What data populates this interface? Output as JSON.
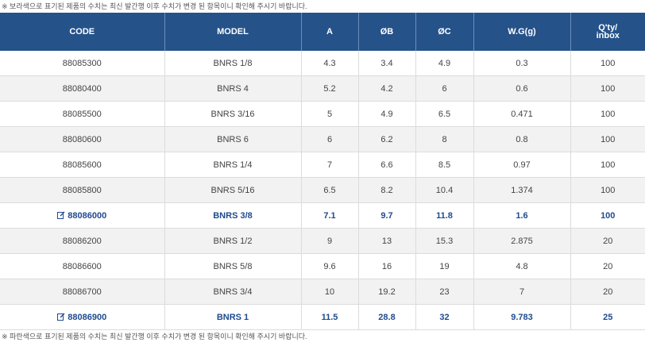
{
  "notes": {
    "top": "※ 보라색으로 표기된 제품의 수치는 최신 발간행 이후 수치가 변경 된 항목이니 확인해 주시기 바랍니다.",
    "bottom": "※ 파란색으로 표기된 제품의 수치는 최신 발간행 이후 수치가 변경 된 항목이니 확인해 주시기 바랍니다."
  },
  "table": {
    "headers": [
      "CODE",
      "MODEL",
      "A",
      "ØB",
      "ØC",
      "W.G(g)"
    ],
    "qty_header": {
      "line1": "Q'ty/",
      "line2": "inbox"
    },
    "rows": [
      {
        "code": "88085300",
        "model": "BNRS 1/8",
        "a": "4.3",
        "b": "3.4",
        "c": "4.9",
        "wg": "0.3",
        "qty": "100"
      },
      {
        "code": "88080400",
        "model": "BNRS 4",
        "a": "5.2",
        "b": "4.2",
        "c": "6",
        "wg": "0.6",
        "qty": "100"
      },
      {
        "code": "88085500",
        "model": "BNRS 3/16",
        "a": "5",
        "b": "4.9",
        "c": "6.5",
        "wg": "0.471",
        "qty": "100"
      },
      {
        "code": "88080600",
        "model": "BNRS 6",
        "a": "6",
        "b": "6.2",
        "c": "8",
        "wg": "0.8",
        "qty": "100"
      },
      {
        "code": "88085600",
        "model": "BNRS 1/4",
        "a": "7",
        "b": "6.6",
        "c": "8.5",
        "wg": "0.97",
        "qty": "100"
      },
      {
        "code": "88085800",
        "model": "BNRS 5/16",
        "a": "6.5",
        "b": "8.2",
        "c": "10.4",
        "wg": "1.374",
        "qty": "100"
      },
      {
        "code": "88086000",
        "model": "BNRS 3/8",
        "a": "7.1",
        "b": "9.7",
        "c": "11.8",
        "wg": "1.6",
        "qty": "100"
      },
      {
        "code": "88086200",
        "model": "BNRS 1/2",
        "a": "9",
        "b": "13",
        "c": "15.3",
        "wg": "2.875",
        "qty": "20"
      },
      {
        "code": "88086600",
        "model": "BNRS 5/8",
        "a": "9.6",
        "b": "16",
        "c": "19",
        "wg": "4.8",
        "qty": "20"
      },
      {
        "code": "88086700",
        "model": "BNRS 3/4",
        "a": "10",
        "b": "19.2",
        "c": "23",
        "wg": "7",
        "qty": "20"
      },
      {
        "code": "88086900",
        "model": "BNRS 1",
        "a": "11.5",
        "b": "28.8",
        "c": "32",
        "wg": "9.783",
        "qty": "25"
      }
    ]
  },
  "colors": {
    "header_bg": "#255289",
    "highlight_text": "#1f4a8f",
    "row_alt_bg": "#f2f2f2"
  }
}
